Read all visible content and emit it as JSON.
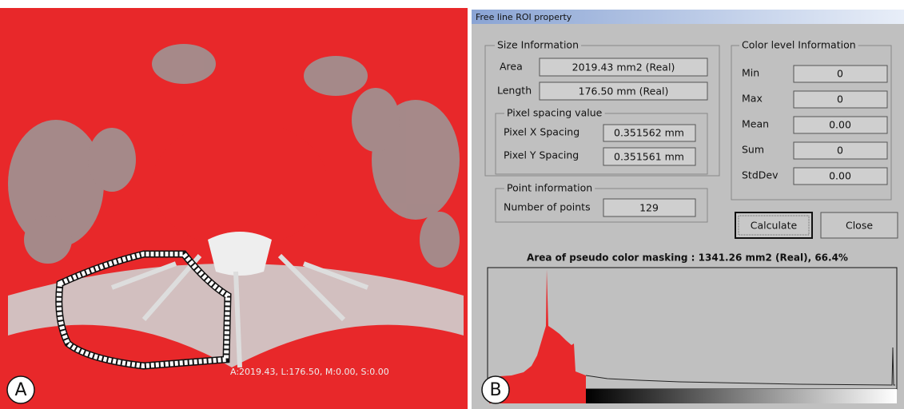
{
  "panel_a": {
    "label": "A",
    "overlay": "A:2019.43, L:176.50, M:0.00, S:0.00"
  },
  "panel_b": {
    "label": "B"
  },
  "dialog": {
    "title": "Free line ROI property",
    "size_information": {
      "title": "Size Information",
      "area_label": "Area",
      "area_value": "2019.43 mm2 (Real)",
      "length_label": "Length",
      "length_value": "176.50 mm (Real)"
    },
    "pixel_spacing": {
      "title": "Pixel spacing value",
      "x_label": "Pixel X Spacing",
      "x_value": "0.351562 mm",
      "y_label": "Pixel Y Spacing",
      "y_value": "0.351561 mm"
    },
    "point_information": {
      "title": "Point information",
      "label": "Number of points",
      "value": "129"
    },
    "color_level": {
      "title": "Color level Information",
      "rows": [
        [
          "Min",
          "0"
        ],
        [
          "Max",
          "0"
        ],
        [
          "Mean",
          "0.00"
        ],
        [
          "Sum",
          "0"
        ],
        [
          "StdDev",
          "0.00"
        ]
      ]
    },
    "buttons": [
      "Calculate",
      "Close"
    ],
    "masking_text": "Area of pseudo color masking : 1341.26 mm2 (Real), 66.4%"
  }
}
